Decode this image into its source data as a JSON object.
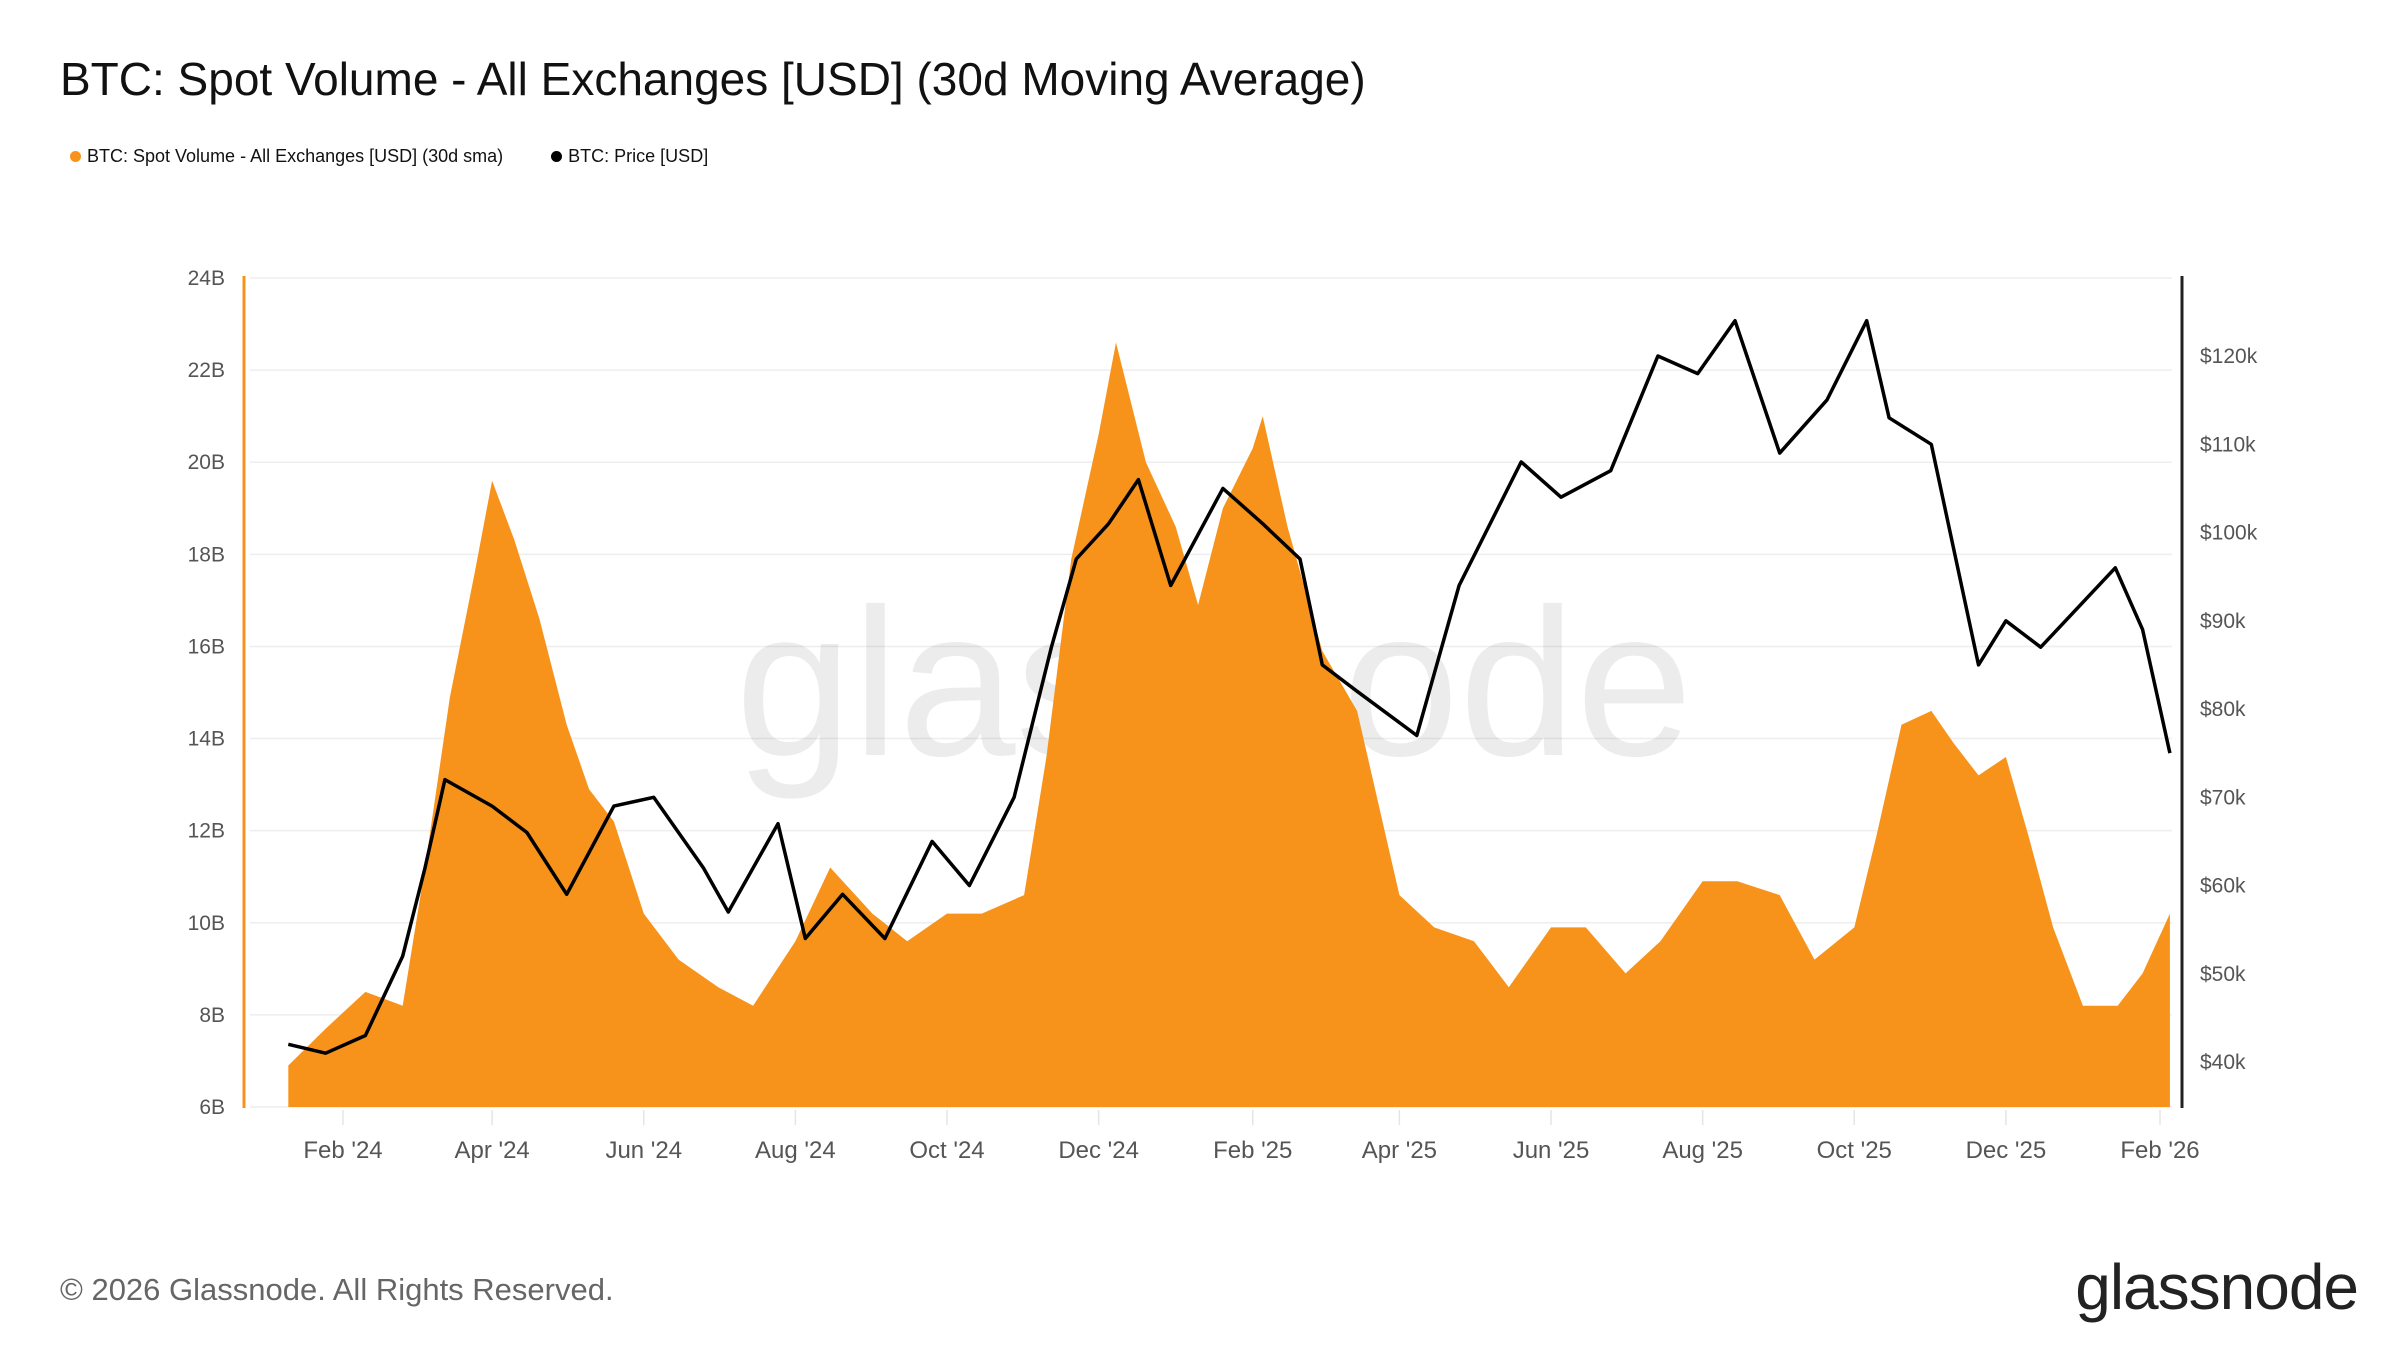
{
  "title": "BTC: Spot Volume - All Exchanges [USD] (30d Moving Average)",
  "footer": "© 2026 Glassnode. All Rights Reserved.",
  "logo": "glassnode",
  "watermark": "glassnode",
  "chart_data": {
    "type": "area+line",
    "title": "BTC: Spot Volume - All Exchanges [USD] (30d Moving Average)",
    "legend_position": "top-left",
    "grid": true,
    "x_ticks": [
      "Feb '24",
      "Apr '24",
      "Jun '24",
      "Aug '24",
      "Oct '24",
      "Dec '24",
      "Feb '25",
      "Apr '25",
      "Jun '25",
      "Aug '25",
      "Oct '25",
      "Dec '25",
      "Feb '26"
    ],
    "x_tick_dates": [
      "2024-02-01",
      "2024-04-01",
      "2024-06-01",
      "2024-08-01",
      "2024-10-01",
      "2024-12-01",
      "2025-02-01",
      "2025-04-01",
      "2025-06-01",
      "2025-08-01",
      "2025-10-01",
      "2025-12-01",
      "2026-02-01"
    ],
    "y_left": {
      "ticks": [
        "6B",
        "8B",
        "10B",
        "12B",
        "14B",
        "16B",
        "18B",
        "20B",
        "22B",
        "24B"
      ],
      "values": [
        6,
        8,
        10,
        12,
        14,
        16,
        18,
        20,
        22,
        24
      ],
      "range": [
        6,
        24
      ],
      "unit": "B USD",
      "color": "#f7931a"
    },
    "y_right": {
      "ticks": [
        "$40k",
        "$50k",
        "$60k",
        "$70k",
        "$80k",
        "$90k",
        "$100k",
        "$110k",
        "$120k"
      ],
      "values": [
        40,
        50,
        60,
        70,
        80,
        90,
        100,
        110,
        120
      ],
      "range": [
        34,
        128
      ],
      "unit": "k USD",
      "color": "#000000"
    },
    "series": [
      {
        "name": "BTC: Spot Volume - All Exchanges [USD] (30d sma)",
        "axis": "left",
        "type": "area",
        "color": "#f7931a",
        "points": [
          [
            "2024-01-10",
            6.9
          ],
          [
            "2024-01-25",
            7.7
          ],
          [
            "2024-02-10",
            8.5
          ],
          [
            "2024-02-25",
            8.2
          ],
          [
            "2024-03-05",
            11.2
          ],
          [
            "2024-03-15",
            14.9
          ],
          [
            "2024-03-25",
            17.6
          ],
          [
            "2024-04-01",
            19.6
          ],
          [
            "2024-04-10",
            18.3
          ],
          [
            "2024-04-20",
            16.6
          ],
          [
            "2024-05-01",
            14.3
          ],
          [
            "2024-05-10",
            12.9
          ],
          [
            "2024-05-20",
            12.2
          ],
          [
            "2024-06-01",
            10.2
          ],
          [
            "2024-06-15",
            9.2
          ],
          [
            "2024-07-01",
            8.6
          ],
          [
            "2024-07-15",
            8.2
          ],
          [
            "2024-08-01",
            9.6
          ],
          [
            "2024-08-15",
            11.2
          ],
          [
            "2024-09-01",
            10.2
          ],
          [
            "2024-09-15",
            9.6
          ],
          [
            "2024-10-01",
            10.2
          ],
          [
            "2024-10-15",
            10.2
          ],
          [
            "2024-11-01",
            10.6
          ],
          [
            "2024-11-10",
            13.6
          ],
          [
            "2024-11-20",
            17.9
          ],
          [
            "2024-12-01",
            20.6
          ],
          [
            "2024-12-08",
            22.6
          ],
          [
            "2024-12-20",
            20.0
          ],
          [
            "2025-01-01",
            18.6
          ],
          [
            "2025-01-10",
            16.9
          ],
          [
            "2025-01-20",
            19.0
          ],
          [
            "2025-02-01",
            20.3
          ],
          [
            "2025-02-05",
            21.0
          ],
          [
            "2025-02-15",
            18.6
          ],
          [
            "2025-03-01",
            15.9
          ],
          [
            "2025-03-15",
            14.6
          ],
          [
            "2025-04-01",
            10.6
          ],
          [
            "2025-04-15",
            9.9
          ],
          [
            "2025-05-01",
            9.6
          ],
          [
            "2025-05-15",
            8.6
          ],
          [
            "2025-06-01",
            9.9
          ],
          [
            "2025-06-15",
            9.9
          ],
          [
            "2025-07-01",
            8.9
          ],
          [
            "2025-07-15",
            9.6
          ],
          [
            "2025-08-01",
            10.9
          ],
          [
            "2025-08-15",
            10.9
          ],
          [
            "2025-09-01",
            10.6
          ],
          [
            "2025-09-15",
            9.2
          ],
          [
            "2025-10-01",
            9.9
          ],
          [
            "2025-10-10",
            11.9
          ],
          [
            "2025-10-20",
            14.3
          ],
          [
            "2025-11-01",
            14.6
          ],
          [
            "2025-11-10",
            13.9
          ],
          [
            "2025-11-20",
            13.2
          ],
          [
            "2025-12-01",
            13.6
          ],
          [
            "2025-12-10",
            11.9
          ],
          [
            "2025-12-20",
            9.9
          ],
          [
            "2026-01-01",
            8.2
          ],
          [
            "2026-01-15",
            8.2
          ],
          [
            "2026-01-25",
            8.9
          ],
          [
            "2026-02-05",
            10.2
          ]
        ]
      },
      {
        "name": "BTC: Price [USD]",
        "axis": "right",
        "type": "line",
        "color": "#000000",
        "points": [
          [
            "2024-01-10",
            42
          ],
          [
            "2024-01-25",
            41
          ],
          [
            "2024-02-10",
            43
          ],
          [
            "2024-02-25",
            52
          ],
          [
            "2024-03-05",
            62
          ],
          [
            "2024-03-13",
            72
          ],
          [
            "2024-04-01",
            69
          ],
          [
            "2024-04-15",
            66
          ],
          [
            "2024-05-01",
            59
          ],
          [
            "2024-05-20",
            69
          ],
          [
            "2024-06-05",
            70
          ],
          [
            "2024-06-25",
            62
          ],
          [
            "2024-07-05",
            57
          ],
          [
            "2024-07-25",
            67
          ],
          [
            "2024-08-05",
            54
          ],
          [
            "2024-08-20",
            59
          ],
          [
            "2024-09-06",
            54
          ],
          [
            "2024-09-25",
            65
          ],
          [
            "2024-10-10",
            60
          ],
          [
            "2024-10-28",
            70
          ],
          [
            "2024-11-12",
            87
          ],
          [
            "2024-11-22",
            97
          ],
          [
            "2024-12-05",
            101
          ],
          [
            "2024-12-17",
            106
          ],
          [
            "2024-12-30",
            94
          ],
          [
            "2025-01-20",
            105
          ],
          [
            "2025-02-05",
            101
          ],
          [
            "2025-02-20",
            97
          ],
          [
            "2025-03-01",
            85
          ],
          [
            "2025-03-15",
            82
          ],
          [
            "2025-04-08",
            77
          ],
          [
            "2025-04-25",
            94
          ],
          [
            "2025-05-20",
            108
          ],
          [
            "2025-06-05",
            104
          ],
          [
            "2025-06-25",
            107
          ],
          [
            "2025-07-14",
            120
          ],
          [
            "2025-07-30",
            118
          ],
          [
            "2025-08-14",
            124
          ],
          [
            "2025-09-01",
            109
          ],
          [
            "2025-09-20",
            115
          ],
          [
            "2025-10-06",
            124
          ],
          [
            "2025-10-15",
            113
          ],
          [
            "2025-11-01",
            110
          ],
          [
            "2025-11-20",
            85
          ],
          [
            "2025-12-01",
            90
          ],
          [
            "2025-12-15",
            87
          ],
          [
            "2026-01-14",
            96
          ],
          [
            "2026-01-25",
            89
          ],
          [
            "2026-02-05",
            75
          ]
        ]
      }
    ]
  }
}
